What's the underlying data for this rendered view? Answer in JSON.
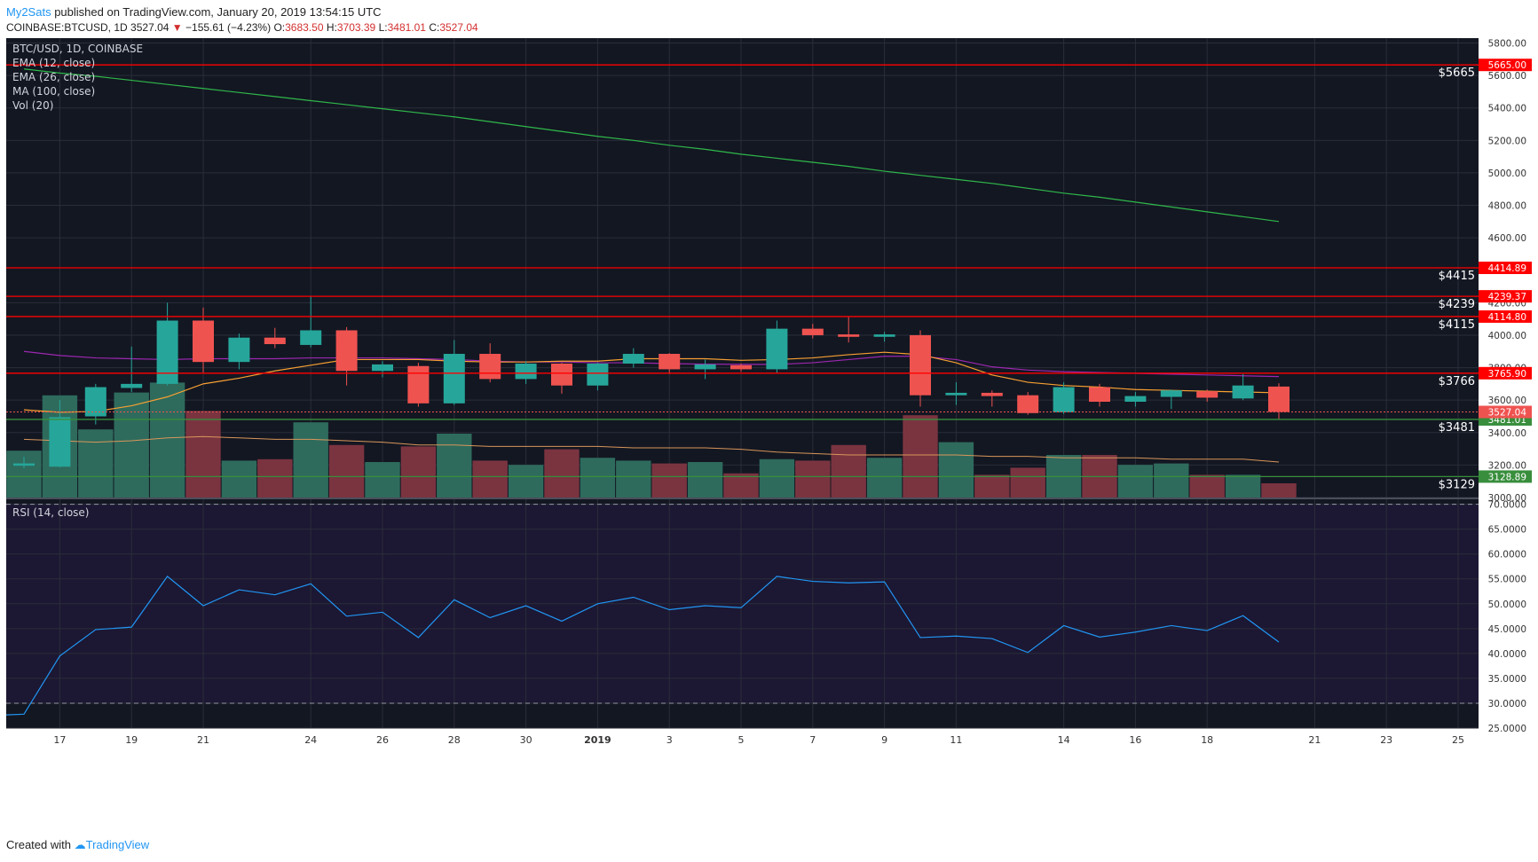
{
  "header": {
    "user": "My2Sats",
    "published": "published on TradingView.com, January 20, 2019 13:54:15 UTC",
    "symbol": "COINBASE:BTCUSD, 1D",
    "last": "3527.04",
    "change": "−155.61 (−4.23%)",
    "ohlc_o_label": "O:",
    "ohlc_o": "3683.50",
    "ohlc_h_label": "H:",
    "ohlc_h": "3703.39",
    "ohlc_l_label": "L:",
    "ohlc_l": "3481.01",
    "ohlc_c_label": "C:",
    "ohlc_c": "3527.04"
  },
  "legend": [
    "BTC/USD, 1D, COINBASE",
    "EMA (12, close)",
    "EMA (26, close)",
    "MA (100, close)",
    "Vol (20)"
  ],
  "rsi_legend": "RSI (14, close)",
  "footer": {
    "created": "Created with",
    "brand": "TradingView"
  },
  "colors": {
    "bg": "#131722",
    "rsi_bg": "#1c1733",
    "up": "#26a69a",
    "down": "#ef5350",
    "ema12": "#f7a032",
    "ema26": "#9c27b0",
    "ma100": "#2fb84a",
    "rsi": "#2196f3",
    "hline": "#ff0000",
    "hline_green": "#388e3c"
  },
  "chart_data": {
    "type": "candlestick",
    "price_axis": {
      "ticks": [
        "5800.00",
        "5600.00",
        "5400.00",
        "5200.00",
        "5000.00",
        "4800.00",
        "4600.00",
        "4200.00",
        "4000.00",
        "3800.00",
        "3600.00",
        "3400.00",
        "3200.00",
        "3000.00"
      ],
      "range": [
        3000,
        5830
      ]
    },
    "x_labels": [
      {
        "label": "17",
        "i": 1
      },
      {
        "label": "19",
        "i": 3
      },
      {
        "label": "21",
        "i": 5
      },
      {
        "label": "24",
        "i": 8
      },
      {
        "label": "26",
        "i": 10
      },
      {
        "label": "28",
        "i": 12
      },
      {
        "label": "30",
        "i": 14
      },
      {
        "label": "2019",
        "i": 16
      },
      {
        "label": "3",
        "i": 18
      },
      {
        "label": "5",
        "i": 20
      },
      {
        "label": "7",
        "i": 22
      },
      {
        "label": "9",
        "i": 24
      },
      {
        "label": "11",
        "i": 26
      },
      {
        "label": "14",
        "i": 29
      },
      {
        "label": "16",
        "i": 31
      },
      {
        "label": "18",
        "i": 33
      },
      {
        "label": "21",
        "i": 36
      },
      {
        "label": "23",
        "i": 38
      },
      {
        "label": "25",
        "i": 40
      }
    ],
    "candles": [
      {
        "o": 3196,
        "h": 3250,
        "l": 3180,
        "c": 3210
      },
      {
        "o": 3190,
        "h": 3600,
        "l": 3185,
        "c": 3495
      },
      {
        "o": 3500,
        "h": 3700,
        "l": 3450,
        "c": 3680
      },
      {
        "o": 3675,
        "h": 3930,
        "l": 3650,
        "c": 3700
      },
      {
        "o": 3700,
        "h": 4200,
        "l": 3690,
        "c": 4090
      },
      {
        "o": 4090,
        "h": 4170,
        "l": 3770,
        "c": 3835
      },
      {
        "o": 3835,
        "h": 4010,
        "l": 3790,
        "c": 3985
      },
      {
        "o": 3985,
        "h": 4045,
        "l": 3920,
        "c": 3945
      },
      {
        "o": 3940,
        "h": 4240,
        "l": 3925,
        "c": 4030
      },
      {
        "o": 4030,
        "h": 4050,
        "l": 3690,
        "c": 3780
      },
      {
        "o": 3780,
        "h": 3840,
        "l": 3740,
        "c": 3820
      },
      {
        "o": 3810,
        "h": 3830,
        "l": 3560,
        "c": 3580
      },
      {
        "o": 3580,
        "h": 3970,
        "l": 3570,
        "c": 3885
      },
      {
        "o": 3885,
        "h": 3950,
        "l": 3710,
        "c": 3730
      },
      {
        "o": 3730,
        "h": 3840,
        "l": 3700,
        "c": 3825
      },
      {
        "o": 3825,
        "h": 3830,
        "l": 3640,
        "c": 3690
      },
      {
        "o": 3690,
        "h": 3830,
        "l": 3660,
        "c": 3825
      },
      {
        "o": 3825,
        "h": 3920,
        "l": 3800,
        "c": 3885
      },
      {
        "o": 3885,
        "h": 3890,
        "l": 3760,
        "c": 3790
      },
      {
        "o": 3790,
        "h": 3850,
        "l": 3730,
        "c": 3820
      },
      {
        "o": 3815,
        "h": 3825,
        "l": 3775,
        "c": 3790
      },
      {
        "o": 3790,
        "h": 4090,
        "l": 3770,
        "c": 4040
      },
      {
        "o": 4040,
        "h": 4070,
        "l": 3980,
        "c": 4000
      },
      {
        "o": 4005,
        "h": 4115,
        "l": 3955,
        "c": 3990
      },
      {
        "o": 3990,
        "h": 4020,
        "l": 3960,
        "c": 4005
      },
      {
        "o": 4000,
        "h": 4030,
        "l": 3560,
        "c": 3630
      },
      {
        "o": 3630,
        "h": 3710,
        "l": 3570,
        "c": 3645
      },
      {
        "o": 3645,
        "h": 3660,
        "l": 3560,
        "c": 3625
      },
      {
        "o": 3630,
        "h": 3650,
        "l": 3510,
        "c": 3520
      },
      {
        "o": 3525,
        "h": 3710,
        "l": 3515,
        "c": 3680
      },
      {
        "o": 3680,
        "h": 3700,
        "l": 3560,
        "c": 3590
      },
      {
        "o": 3590,
        "h": 3650,
        "l": 3560,
        "c": 3625
      },
      {
        "o": 3620,
        "h": 3665,
        "l": 3545,
        "c": 3660
      },
      {
        "o": 3655,
        "h": 3665,
        "l": 3590,
        "c": 3615
      },
      {
        "o": 3610,
        "h": 3760,
        "l": 3600,
        "c": 3690
      },
      {
        "o": 3683.5,
        "h": 3703.39,
        "l": 3481.01,
        "c": 3527.04
      }
    ],
    "volume": [
      0.33,
      0.72,
      0.48,
      0.74,
      0.81,
      0.61,
      0.26,
      0.27,
      0.53,
      0.37,
      0.25,
      0.36,
      0.45,
      0.26,
      0.23,
      0.34,
      0.28,
      0.26,
      0.24,
      0.25,
      0.17,
      0.27,
      0.26,
      0.37,
      0.28,
      0.58,
      0.39,
      0.16,
      0.21,
      0.3,
      0.3,
      0.23,
      0.24,
      0.16,
      0.16,
      0.1
    ],
    "ema12": [
      3540,
      3525,
      3530,
      3565,
      3620,
      3700,
      3735,
      3780,
      3815,
      3850,
      3850,
      3850,
      3840,
      3835,
      3835,
      3840,
      3840,
      3855,
      3855,
      3855,
      3845,
      3850,
      3860,
      3880,
      3895,
      3880,
      3830,
      3755,
      3710,
      3690,
      3680,
      3665,
      3660,
      3655,
      3650,
      3645
    ],
    "ema26": [
      3900,
      3875,
      3860,
      3855,
      3850,
      3855,
      3855,
      3855,
      3860,
      3860,
      3860,
      3855,
      3850,
      3840,
      3835,
      3835,
      3830,
      3830,
      3825,
      3822,
      3820,
      3820,
      3830,
      3850,
      3870,
      3870,
      3850,
      3805,
      3785,
      3775,
      3770,
      3765,
      3760,
      3755,
      3750,
      3745
    ],
    "ma100": [
      5640,
      5615,
      5595,
      5570,
      5545,
      5520,
      5495,
      5470,
      5445,
      5420,
      5395,
      5370,
      5345,
      5315,
      5285,
      5255,
      5225,
      5200,
      5170,
      5145,
      5115,
      5090,
      5065,
      5040,
      5010,
      4985,
      4960,
      4935,
      4905,
      4875,
      4850,
      4820,
      4790,
      4760,
      4730,
      4700
    ],
    "vol_ma": [
      0.41,
      0.4,
      0.39,
      0.4,
      0.42,
      0.43,
      0.42,
      0.41,
      0.41,
      0.4,
      0.39,
      0.37,
      0.37,
      0.36,
      0.36,
      0.36,
      0.36,
      0.35,
      0.35,
      0.35,
      0.34,
      0.32,
      0.31,
      0.3,
      0.3,
      0.3,
      0.3,
      0.29,
      0.29,
      0.28,
      0.28,
      0.28,
      0.27,
      0.27,
      0.27,
      0.25
    ],
    "hlines": [
      {
        "value": 5665.0,
        "label": "5665.00",
        "note": "$5665",
        "color": "#ff0000"
      },
      {
        "value": 4414.89,
        "label": "4414.89",
        "note": "$4415",
        "color": "#ff0000"
      },
      {
        "value": 4239.37,
        "label": "4239.37",
        "note": "$4239",
        "color": "#ff0000"
      },
      {
        "value": 4114.8,
        "label": "4114.80",
        "note": "$4115",
        "color": "#ff0000"
      },
      {
        "value": 3765.9,
        "label": "3765.90",
        "note": "$3766",
        "color": "#ff0000"
      },
      {
        "value": 3481.01,
        "label": "3481.01",
        "note": "$3481",
        "color": "#388e3c"
      },
      {
        "value": 3128.89,
        "label": "3128.89",
        "note": "$3129",
        "color": "#388e3c"
      }
    ],
    "last_price": {
      "value": 3527.04,
      "label": "3527.04"
    },
    "rsi": {
      "ticks": [
        "70.0000",
        "65.0000",
        "60.0000",
        "55.0000",
        "50.0000",
        "45.0000",
        "40.0000",
        "35.0000",
        "30.0000",
        "25.0000"
      ],
      "range": [
        25,
        71
      ],
      "bands": [
        70,
        30
      ],
      "values": [
        27.5,
        27.8,
        39.5,
        44.8,
        45.3,
        55.5,
        49.6,
        52.8,
        51.8,
        54.0,
        47.5,
        48.3,
        43.2,
        50.8,
        47.2,
        49.6,
        46.5,
        50.0,
        51.3,
        48.8,
        49.6,
        49.2,
        55.5,
        54.5,
        54.2,
        54.4,
        43.2,
        43.5,
        43.0,
        40.2,
        45.6,
        43.3,
        44.3,
        45.6,
        44.6,
        47.6,
        42.3
      ],
      "x_offset": -1
    }
  }
}
